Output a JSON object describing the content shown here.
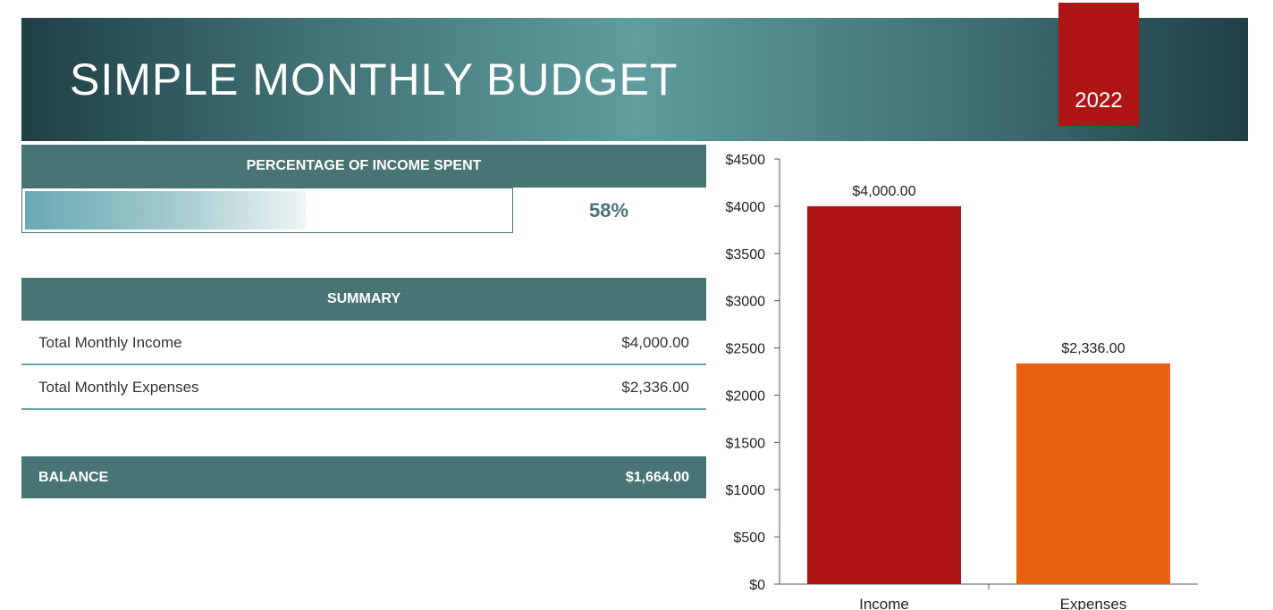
{
  "header": {
    "title": "SIMPLE MONTHLY BUDGET",
    "year": "2022"
  },
  "percentage_spent": {
    "title": "PERCENTAGE OF INCOME SPENT",
    "value_label": "58%",
    "fraction": 0.58
  },
  "summary": {
    "title": "SUMMARY",
    "rows": [
      {
        "label": "Total Monthly Income",
        "value": "$4,000.00"
      },
      {
        "label": "Total Monthly Expenses",
        "value": "$2,336.00"
      }
    ]
  },
  "balance": {
    "label": "BALANCE",
    "value": "$1,664.00"
  },
  "colors": {
    "banner_dark": "#1f3f45",
    "banner_light": "#5f9d9e",
    "section_header": "#497474",
    "accent_red": "#b01515",
    "accent_orange": "#e86213"
  },
  "chart_data": {
    "type": "bar",
    "categories": [
      "Income",
      "Expenses"
    ],
    "values": [
      4000,
      2336
    ],
    "data_labels": [
      "$4,000.00",
      "$2,336.00"
    ],
    "bar_colors": [
      "#b01515",
      "#e86213"
    ],
    "ylim": [
      0,
      4500
    ],
    "yticks": [
      0,
      500,
      1000,
      1500,
      2000,
      2500,
      3000,
      3500,
      4000,
      4500
    ],
    "ytick_labels": [
      "$0",
      "$500",
      "$1000",
      "$1500",
      "$2000",
      "$2500",
      "$3000",
      "$3500",
      "$4000",
      "$4500"
    ],
    "grid": false,
    "legend": "none"
  }
}
